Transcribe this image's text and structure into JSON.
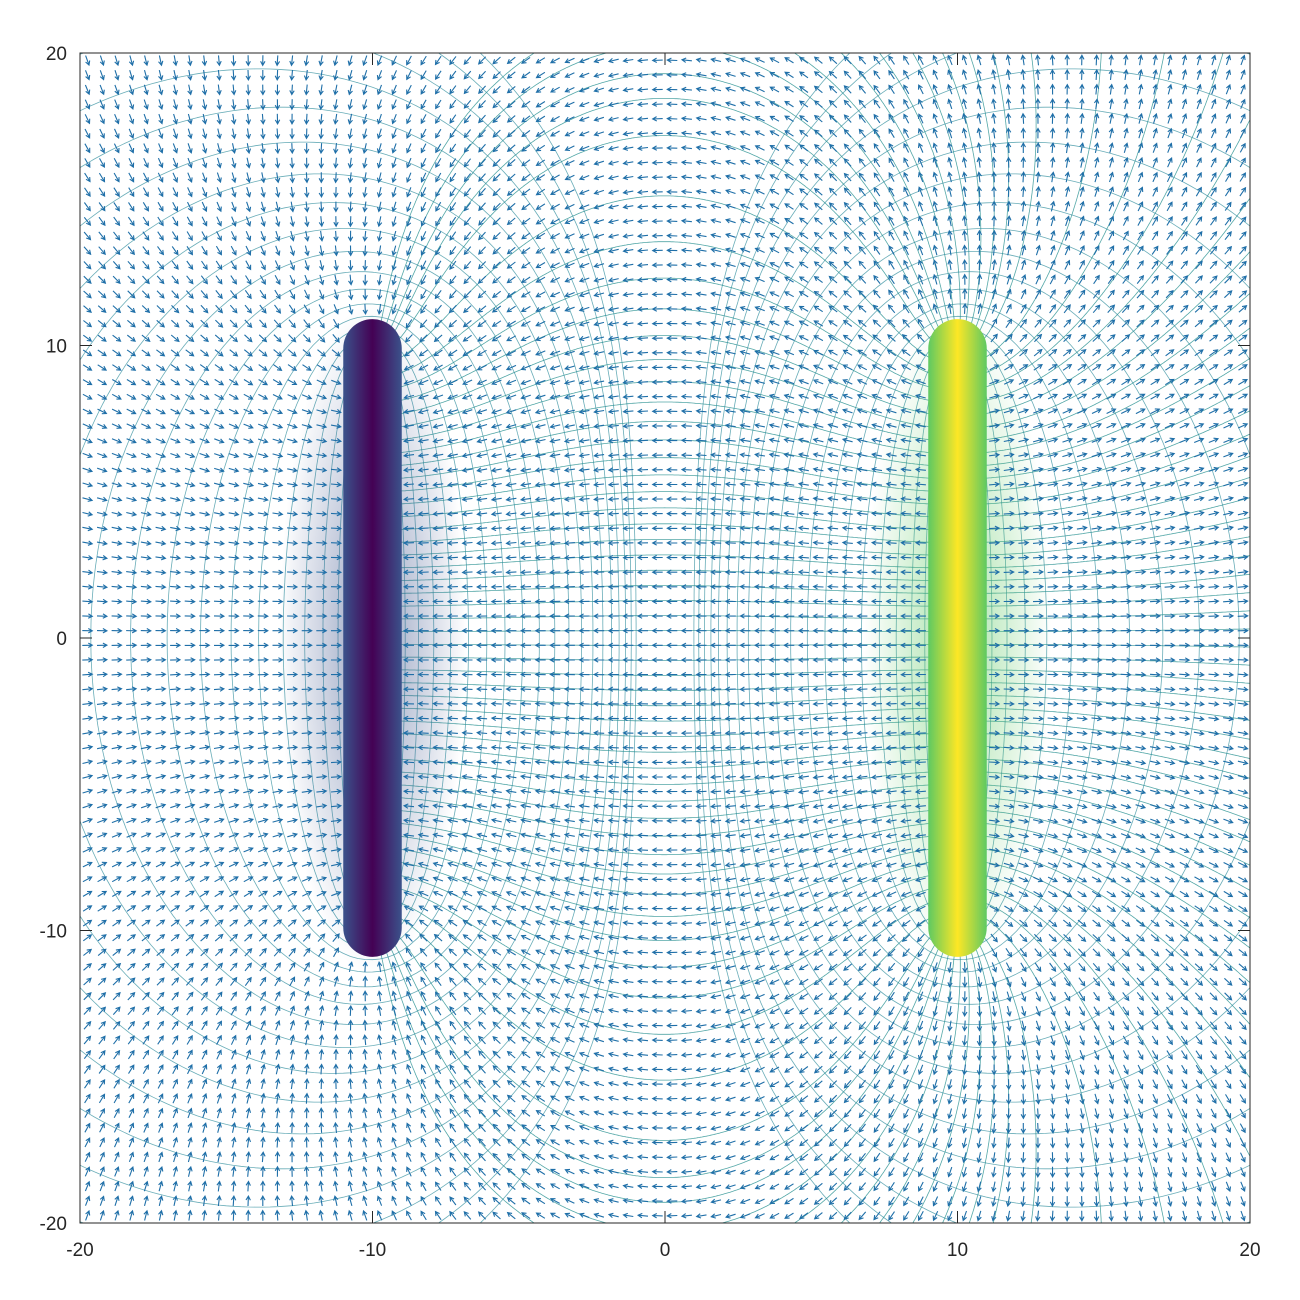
{
  "chart_data": {
    "type": "contour-quiver",
    "title": "",
    "xlabel": "",
    "ylabel": "",
    "xlim": [
      -20,
      20
    ],
    "ylim": [
      -20,
      20
    ],
    "grid": false,
    "x_ticks": [
      {
        "value": -20,
        "label": "-20"
      },
      {
        "value": -10,
        "label": "-10"
      },
      {
        "value": 0,
        "label": "0"
      },
      {
        "value": 10,
        "label": "10"
      },
      {
        "value": 20,
        "label": "20"
      }
    ],
    "y_ticks": [
      {
        "value": 20,
        "label": "20"
      },
      {
        "value": 10,
        "label": "10"
      },
      {
        "value": 0,
        "label": "0"
      },
      {
        "value": -10,
        "label": "-10"
      },
      {
        "value": -20,
        "label": "-20"
      }
    ],
    "charges": [
      {
        "x": -10,
        "y_start": -10,
        "y_end": 10,
        "sign": -1,
        "color_low": "#440154",
        "color_edge": "#3b528b"
      },
      {
        "x": 10,
        "y_start": -10,
        "y_end": 10,
        "sign": 1,
        "color_high": "#fde725",
        "color_edge": "#5ec962"
      }
    ],
    "quiver_spacing": 0.5,
    "quiver_color": "#1f6fa8",
    "field_line_color": "#1a8a8a",
    "equipotential_color": "#2a8a9a",
    "colormap": "viridis"
  }
}
